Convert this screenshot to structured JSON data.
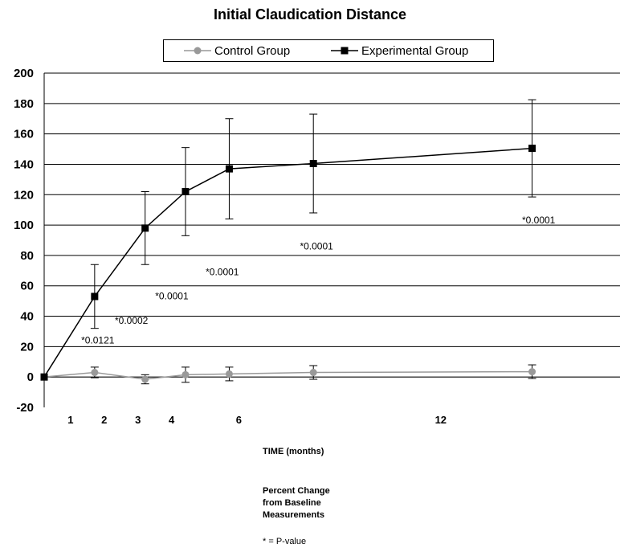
{
  "chart_data": {
    "type": "line",
    "title": "Initial Claudication Distance",
    "xlabel": "TIME (months)",
    "ylim": [
      -20,
      200
    ],
    "y_ticks": [
      200,
      180,
      160,
      140,
      120,
      100,
      80,
      60,
      40,
      20,
      0,
      -20
    ],
    "x_tick_labels": [
      {
        "x": 1,
        "label": "1"
      },
      {
        "x": 2,
        "label": "2"
      },
      {
        "x": 3,
        "label": "3"
      },
      {
        "x": 4,
        "label": "4"
      },
      {
        "x": 6,
        "label": "6"
      },
      {
        "x": 12,
        "label": "12"
      }
    ],
    "grid": "horizontal",
    "legend": "top-center",
    "series": [
      {
        "name": "Control Group",
        "color": "#999999",
        "marker": "circle",
        "points": [
          {
            "x": 0,
            "y": 0,
            "err": 0
          },
          {
            "x": 1.5,
            "y": 3,
            "err": 3.5
          },
          {
            "x": 3,
            "y": -1.5,
            "err": 3
          },
          {
            "x": 4.2,
            "y": 1.5,
            "err": 5
          },
          {
            "x": 5.5,
            "y": 2,
            "err": 4.5
          },
          {
            "x": 8,
            "y": 3,
            "err": 4.5
          },
          {
            "x": 14.5,
            "y": 3.5,
            "err": 4.5
          }
        ]
      },
      {
        "name": "Experimental Group",
        "color": "#000000",
        "marker": "square",
        "points": [
          {
            "x": 0,
            "y": 0,
            "err": 0
          },
          {
            "x": 1.5,
            "y": 53,
            "err": 21
          },
          {
            "x": 3,
            "y": 98,
            "err": 24
          },
          {
            "x": 4.2,
            "y": 122,
            "err": 29
          },
          {
            "x": 5.5,
            "y": 137,
            "err": 33
          },
          {
            "x": 8,
            "y": 140.5,
            "err": 32.5
          },
          {
            "x": 14.5,
            "y": 150.5,
            "err": 32
          }
        ]
      }
    ],
    "annotations": [
      {
        "text": "*0.0121",
        "x": 1.1,
        "y": 22
      },
      {
        "text": "*0.0002",
        "x": 2.1,
        "y": 35
      },
      {
        "text": "*0.0001",
        "x": 3.3,
        "y": 51
      },
      {
        "text": "*0.0001",
        "x": 4.8,
        "y": 67
      },
      {
        "text": "*0.0001",
        "x": 7.6,
        "y": 84
      },
      {
        "text": "*0.0001",
        "x": 14.2,
        "y": 101
      }
    ],
    "notes": {
      "measure_line1": "Percent Change",
      "measure_line2": "from Baseline",
      "measure_line3": "Measurements",
      "pvalue_key": "* = P-value"
    }
  }
}
